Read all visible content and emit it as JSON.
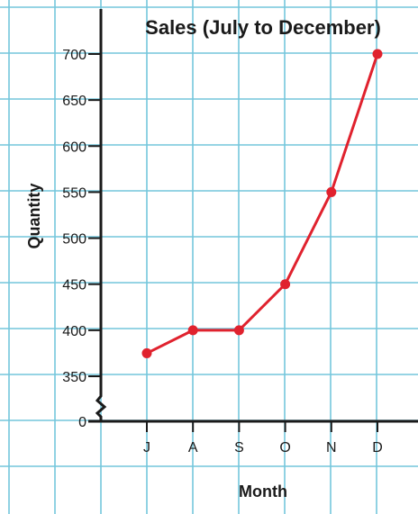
{
  "chart_data": {
    "type": "line",
    "title": "Sales (July to December)",
    "xlabel": "Month",
    "ylabel": "Quantity",
    "categories": [
      "J",
      "A",
      "S",
      "O",
      "N",
      "D"
    ],
    "series": [
      {
        "values": [
          375,
          400,
          400,
          450,
          550,
          700
        ]
      }
    ],
    "y_ticks": [
      "0",
      "350",
      "400",
      "450",
      "500",
      "550",
      "600",
      "650",
      "700"
    ],
    "ylim": [
      350,
      700
    ],
    "y_axis_break": true,
    "grid": true,
    "colors": {
      "series": "#e0222e",
      "grid": "#74c6dc",
      "axis": "#1a1a1a"
    }
  }
}
